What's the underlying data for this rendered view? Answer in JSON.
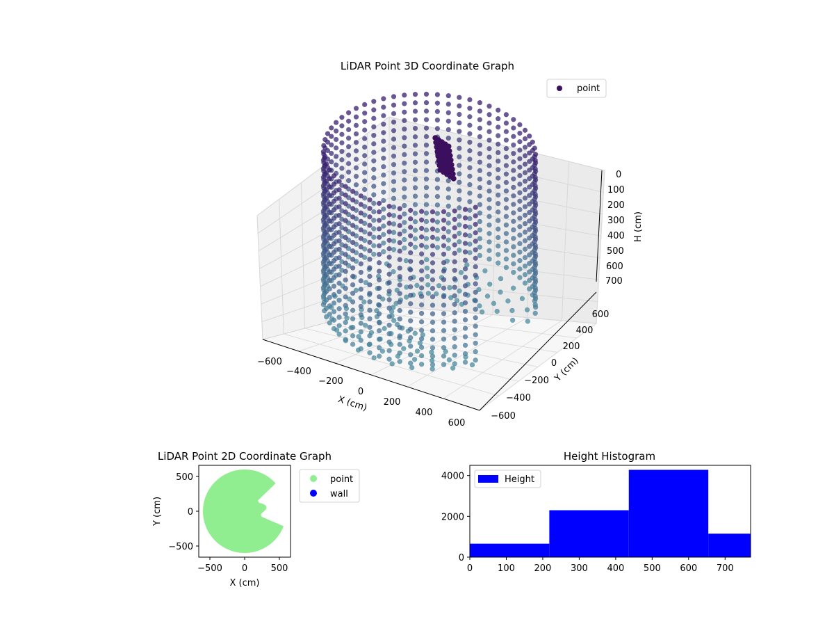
{
  "colors": {
    "point_3d_near": "#4a8fa0",
    "point_3d_far": "#3b1b6e",
    "point_2d": "#90ee90",
    "wall_2d": "#0000ff",
    "hist_bar": "#0000ff"
  },
  "chart_data": [
    {
      "id": "lidar-3d",
      "type": "scatter",
      "title": "LiDAR Point 3D Coordinate Graph",
      "xlabel": "X (cm)",
      "ylabel": "Y (cm)",
      "zlabel": "H (cm)",
      "x_ticks": [
        "−600",
        "−400",
        "−200",
        "0",
        "200",
        "400",
        "600"
      ],
      "y_ticks": [
        "−600",
        "−400",
        "−200",
        "0",
        "200",
        "400",
        "600"
      ],
      "z_ticks": [
        "0",
        "100",
        "200",
        "300",
        "400",
        "500",
        "600",
        "700"
      ],
      "xlim": [
        -650,
        650
      ],
      "ylim": [
        -650,
        650
      ],
      "zlim": [
        0,
        770
      ],
      "z_inverted": true,
      "grid": true,
      "legend": {
        "placement": "upper-right",
        "entries": [
          {
            "label": "point",
            "marker": "circle"
          }
        ]
      },
      "description_series": {
        "name": "point",
        "shape": "cylindrical wall of points, radius approx 600 cm, heights 0 to 770 cm, with opening near x 300 to 600"
      }
    },
    {
      "id": "lidar-2d",
      "type": "scatter",
      "title": "LiDAR Point 2D Coordinate Graph",
      "xlabel": "X (cm)",
      "ylabel": "Y (cm)",
      "x_ticks": [
        "−500",
        "0",
        "500"
      ],
      "y_ticks": [
        "500",
        "0",
        "−500"
      ],
      "xlim": [
        -660,
        660
      ],
      "ylim": [
        -660,
        660
      ],
      "legend": {
        "placement": "outside-right",
        "entries": [
          {
            "label": "point",
            "color": "#90ee90"
          },
          {
            "label": "wall",
            "color": "#0000ff"
          }
        ]
      }
    },
    {
      "id": "height-hist",
      "type": "bar",
      "title": "Height Histogram",
      "x_ticks": [
        "0",
        "100",
        "200",
        "300",
        "400",
        "500",
        "600",
        "700"
      ],
      "y_ticks": [
        "0",
        "2000",
        "4000"
      ],
      "xlim": [
        0,
        770
      ],
      "ylim": [
        0,
        4500
      ],
      "bins": [
        {
          "start": 0,
          "end": 218,
          "count": 660
        },
        {
          "start": 218,
          "end": 436,
          "count": 2300
        },
        {
          "start": 436,
          "end": 654,
          "count": 4280
        },
        {
          "start": 654,
          "end": 770,
          "count": 1150
        }
      ],
      "legend": {
        "placement": "upper-left",
        "entries": [
          {
            "label": "Height",
            "color": "#0000ff"
          }
        ]
      }
    }
  ]
}
